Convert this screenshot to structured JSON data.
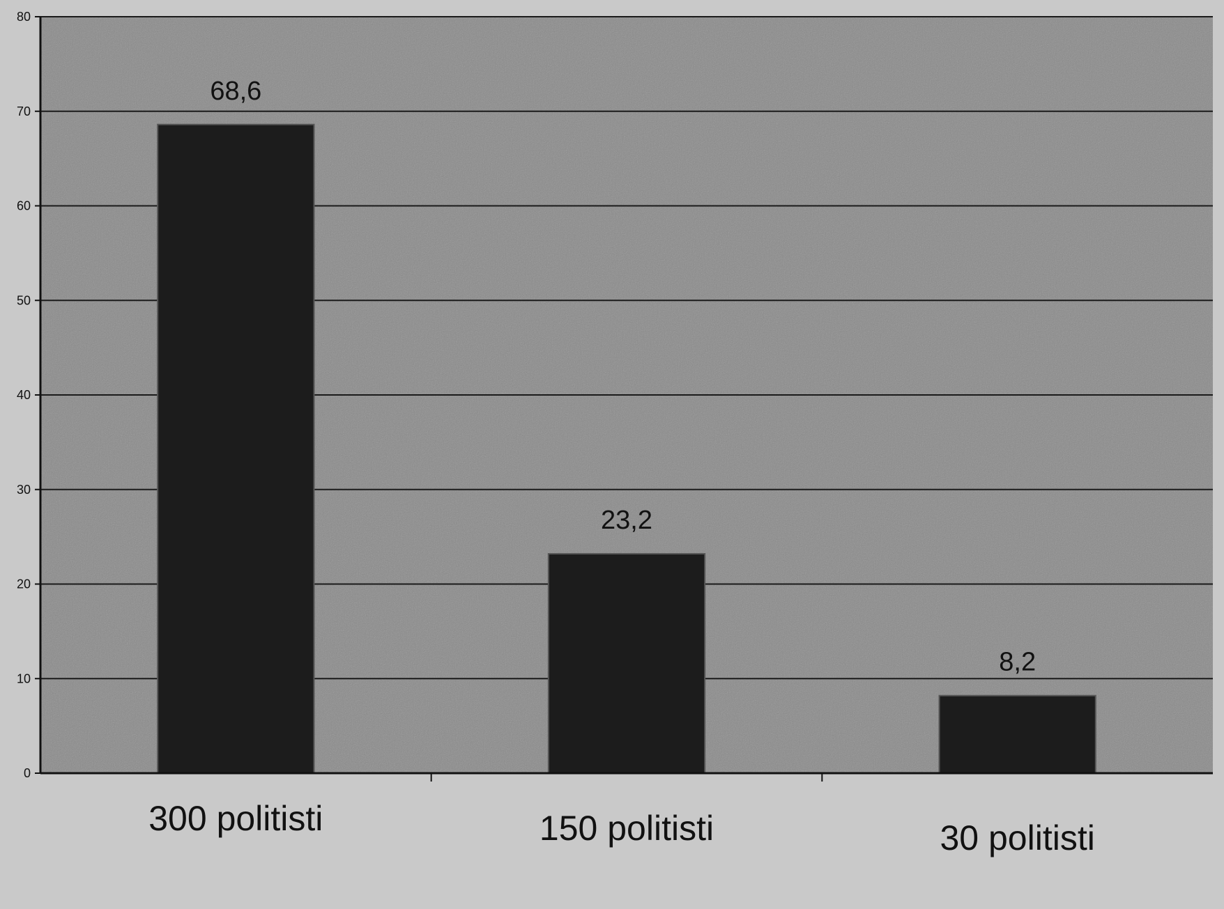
{
  "chart_data": {
    "type": "bar",
    "categories": [
      "300 politisti",
      "150 politisti",
      "30 politisti"
    ],
    "values": [
      68.6,
      23.2,
      8.2
    ],
    "data_labels": [
      "68,6",
      "23,2",
      "8,2"
    ],
    "title": "",
    "xlabel": "",
    "ylabel": "",
    "ylim": [
      0,
      80
    ],
    "yticks": [
      0,
      10,
      20,
      30,
      40,
      50,
      60,
      70,
      80
    ],
    "grid": true,
    "legend": "none",
    "colors": {
      "bar": "#1c1c1c",
      "plot_background": "#8a8a8a",
      "page_background": "#c9c9c9",
      "gridline": "#1a1a1a"
    }
  }
}
